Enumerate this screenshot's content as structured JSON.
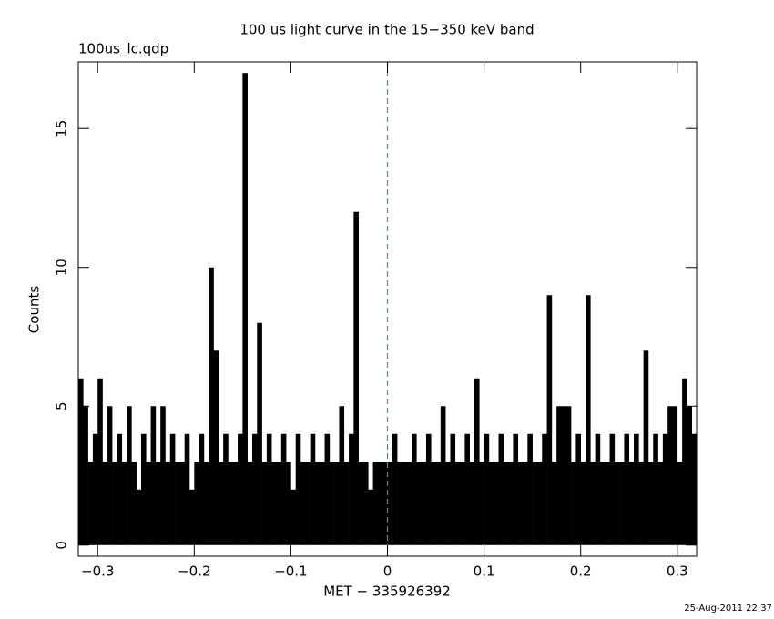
{
  "chart_data": {
    "type": "histogram",
    "title": "100 us light curve in the 15−350 keV band",
    "subtitle": "100us_lc.qdp",
    "x_label": "MET − 335926392",
    "y_label": "Counts",
    "timestamp": "25-Aug-2011 22:37",
    "color": "#000000",
    "marker_x": 0,
    "marker_color": "#1a9fbf",
    "bins": [
      -0.32,
      -0.315,
      -0.31,
      -0.305,
      -0.3,
      -0.295,
      -0.29,
      -0.285,
      -0.28,
      -0.275,
      -0.27,
      -0.265,
      -0.26,
      -0.255,
      -0.25,
      -0.245,
      -0.24,
      -0.235,
      -0.23,
      -0.225,
      -0.22,
      -0.215,
      -0.21,
      -0.205,
      -0.2,
      -0.195,
      -0.19,
      -0.185,
      -0.18,
      -0.175,
      -0.17,
      -0.165,
      -0.16,
      -0.155,
      -0.15,
      -0.145,
      -0.14,
      -0.135,
      -0.13,
      -0.125,
      -0.12,
      -0.115,
      -0.11,
      -0.105,
      -0.1,
      -0.095,
      -0.09,
      -0.085,
      -0.08,
      -0.075,
      -0.07,
      -0.065,
      -0.06,
      -0.055,
      -0.05,
      -0.045,
      -0.04,
      -0.035,
      -0.03,
      -0.025,
      -0.02,
      -0.015,
      -0.01,
      -0.005,
      0,
      0.005,
      0.01,
      0.015,
      0.02,
      0.025,
      0.03,
      0.035,
      0.04,
      0.045,
      0.05,
      0.055,
      0.06,
      0.065,
      0.07,
      0.075,
      0.08,
      0.085,
      0.09,
      0.095,
      0.1,
      0.105,
      0.11,
      0.115,
      0.12,
      0.125,
      0.13,
      0.135,
      0.14,
      0.145,
      0.15,
      0.155,
      0.16,
      0.165,
      0.17,
      0.175,
      0.18,
      0.185,
      0.19,
      0.195,
      0.2,
      0.205,
      0.21,
      0.215,
      0.22,
      0.225,
      0.23,
      0.235,
      0.24,
      0.245,
      0.25,
      0.255,
      0.26,
      0.265,
      0.27,
      0.275,
      0.28,
      0.285,
      0.29,
      0.295,
      0.3,
      0.305,
      0.31,
      0.315,
      0.32
    ],
    "values": [
      6,
      5,
      3,
      4,
      6,
      3,
      5,
      3,
      4,
      3,
      5,
      3,
      2,
      4,
      3,
      5,
      3,
      5,
      3,
      4,
      3,
      3,
      4,
      2,
      3,
      4,
      3,
      10,
      7,
      3,
      4,
      3,
      3,
      4,
      17,
      3,
      4,
      8,
      3,
      4,
      3,
      3,
      4,
      3,
      2,
      4,
      3,
      3,
      4,
      3,
      3,
      4,
      3,
      3,
      5,
      3,
      4,
      12,
      3,
      3,
      2,
      3,
      3,
      3,
      3,
      4,
      3,
      3,
      3,
      4,
      3,
      3,
      4,
      3,
      3,
      5,
      3,
      4,
      3,
      3,
      4,
      3,
      6,
      3,
      4,
      3,
      3,
      4,
      3,
      3,
      4,
      3,
      3,
      4,
      3,
      3,
      4,
      9,
      3,
      5,
      5,
      5,
      3,
      4,
      3,
      9,
      3,
      4,
      3,
      3,
      4,
      3,
      3,
      4,
      3,
      4,
      3,
      7,
      3,
      4,
      3,
      4,
      5,
      5,
      3,
      6,
      5,
      4
    ],
    "xlim": [
      -0.32,
      0.32
    ],
    "ylim": [
      -0.4,
      17.4
    ],
    "xticks": [
      {
        "value": -0.3,
        "label": "−0.3"
      },
      {
        "value": -0.2,
        "label": "−0.2"
      },
      {
        "value": -0.1,
        "label": "−0.1"
      },
      0,
      0.1,
      0.2,
      0.3
    ],
    "yticks": [
      0,
      5,
      10,
      15
    ]
  }
}
